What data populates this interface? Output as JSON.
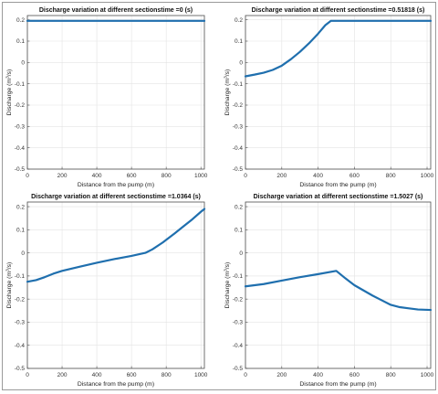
{
  "figure": {
    "common": {
      "xlabel": "Distance from the pump (m)",
      "ylabel": "Discharge (m^3/s)",
      "xlim": [
        0,
        1020
      ],
      "ylim": [
        -0.5,
        0.22
      ],
      "xticks": [
        0,
        200,
        400,
        600,
        800,
        1000
      ],
      "yticks": [
        -0.5,
        -0.4,
        -0.3,
        -0.2,
        -0.1,
        0,
        0.1,
        0.2
      ],
      "grid": true,
      "line_color": "#1f6fae"
    }
  },
  "chart_data": [
    {
      "type": "line",
      "title": "Discharge variation at different sectionstime =0 (s)",
      "xlabel": "Distance from the pump (m)",
      "ylabel": "Discharge (m^3/s)",
      "xlim": [
        0,
        1020
      ],
      "ylim": [
        -0.5,
        0.22
      ],
      "x": [
        0,
        200,
        400,
        600,
        800,
        1020
      ],
      "y": [
        0.195,
        0.195,
        0.195,
        0.195,
        0.195,
        0.195
      ]
    },
    {
      "type": "line",
      "title": "Discharge variation at different sectionstime =0.51818 (s)",
      "xlabel": "Distance from the pump (m)",
      "ylabel": "Discharge (m^3/s)",
      "xlim": [
        0,
        1020
      ],
      "ylim": [
        -0.5,
        0.22
      ],
      "x": [
        0,
        50,
        100,
        150,
        200,
        250,
        300,
        350,
        400,
        440,
        470,
        600,
        800,
        1020
      ],
      "y": [
        -0.065,
        -0.057,
        -0.048,
        -0.035,
        -0.015,
        0.015,
        0.05,
        0.09,
        0.135,
        0.175,
        0.195,
        0.195,
        0.195,
        0.195
      ]
    },
    {
      "type": "line",
      "title": "Discharge variation at different sectionstime =1.0364 (s)",
      "xlabel": "Distance from the pump (m)",
      "ylabel": "Discharge (m^3/s)",
      "xlim": [
        0,
        1020
      ],
      "ylim": [
        -0.5,
        0.22
      ],
      "x": [
        0,
        50,
        100,
        150,
        200,
        300,
        400,
        500,
        600,
        680,
        720,
        780,
        850,
        900,
        950,
        1000,
        1020
      ],
      "y": [
        -0.125,
        -0.118,
        -0.105,
        -0.09,
        -0.078,
        -0.06,
        -0.043,
        -0.027,
        -0.013,
        0.0,
        0.015,
        0.045,
        0.085,
        0.115,
        0.145,
        0.178,
        0.19
      ]
    },
    {
      "type": "line",
      "title": "Discharge variation at different sectionstime =1.5027 (s)",
      "xlabel": "Distance from the pump (m)",
      "ylabel": "Discharge (m^3/s)",
      "xlim": [
        0,
        1020
      ],
      "ylim": [
        -0.5,
        0.22
      ],
      "x": [
        0,
        100,
        200,
        300,
        400,
        500,
        550,
        600,
        700,
        750,
        800,
        850,
        900,
        950,
        1020
      ],
      "y": [
        -0.145,
        -0.135,
        -0.12,
        -0.105,
        -0.092,
        -0.078,
        -0.11,
        -0.14,
        -0.185,
        -0.205,
        -0.225,
        -0.235,
        -0.24,
        -0.245,
        -0.247
      ]
    }
  ]
}
